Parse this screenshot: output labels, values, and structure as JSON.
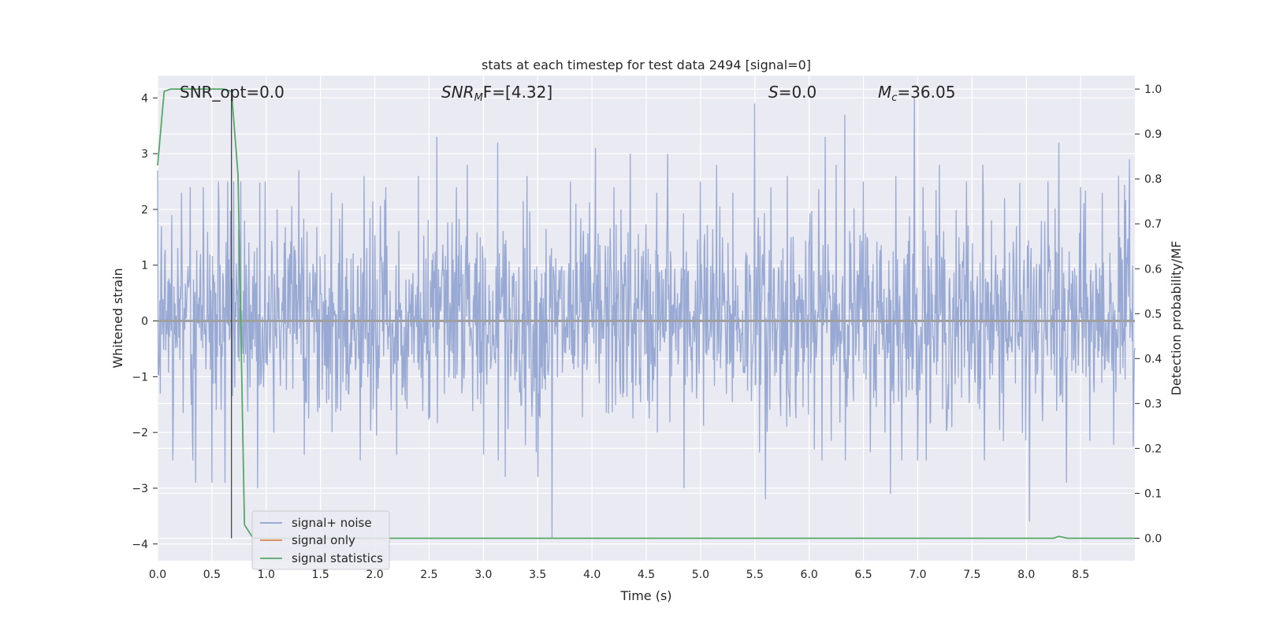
{
  "chart_data": {
    "type": "line",
    "title": "stats at each timestep for test data 2494 [signal=0]",
    "xlabel": "Time (s)",
    "ylabel": "Whitened strain",
    "ylabel_right": "Detection probability/MF",
    "xlim": [
      0.0,
      9.0
    ],
    "ylim": [
      -4.3,
      4.4
    ],
    "ylim_right": [
      -0.05,
      1.03
    ],
    "x_ticks": [
      "0.0",
      "0.5",
      "1.0",
      "1.5",
      "2.0",
      "2.5",
      "3.0",
      "3.5",
      "4.0",
      "4.5",
      "5.0",
      "5.5",
      "6.0",
      "6.5",
      "7.0",
      "7.5",
      "8.0",
      "8.5"
    ],
    "y_ticks": [
      "4",
      "3",
      "2",
      "1",
      "0",
      "−1",
      "−2",
      "−3",
      "−4"
    ],
    "y_ticks_right": [
      "1.0",
      "0.9",
      "0.8",
      "0.7",
      "0.6",
      "0.5",
      "0.4",
      "0.3",
      "0.2",
      "0.1",
      "0.0"
    ],
    "grid": true,
    "legend_position": "lower-left",
    "annotations": {
      "snr_opt": "SNR_opt=0.0",
      "snr_mf_sym": "SNR",
      "snr_mf_sub": "M",
      "snr_mf_rest": "F=[4.32]",
      "s_sym": "S",
      "s_rest": "=0.0",
      "mc_sym": "M",
      "mc_sub": "c",
      "mc_rest": "=36.05"
    },
    "marker_line_x": 0.68,
    "series": [
      {
        "name": "signal+ noise",
        "color": "#8fa2cf",
        "axis": "left",
        "peaks": [
          [
            0.0,
            2.7
          ],
          [
            0.13,
            1.9
          ],
          [
            0.22,
            2.3
          ],
          [
            0.3,
            2.4
          ],
          [
            0.35,
            -2.9
          ],
          [
            0.42,
            2.4
          ],
          [
            0.5,
            -2.9
          ],
          [
            0.56,
            2.5
          ],
          [
            0.62,
            -2.9
          ],
          [
            0.7,
            2.5
          ],
          [
            0.8,
            1.8
          ],
          [
            0.92,
            -3.0
          ],
          [
            1.1,
            2.0
          ],
          [
            1.3,
            2.7
          ],
          [
            1.35,
            -2.4
          ],
          [
            1.6,
            2.3
          ],
          [
            1.9,
            2.6
          ],
          [
            2.1,
            2.4
          ],
          [
            2.2,
            -2.4
          ],
          [
            2.4,
            2.6
          ],
          [
            2.57,
            3.3
          ],
          [
            2.75,
            2.4
          ],
          [
            2.85,
            2.8
          ],
          [
            3.0,
            -2.4
          ],
          [
            3.13,
            3.2
          ],
          [
            3.2,
            -2.8
          ],
          [
            3.4,
            2.6
          ],
          [
            3.5,
            -2.8
          ],
          [
            3.63,
            -3.9
          ],
          [
            3.8,
            2.5
          ],
          [
            4.03,
            3.1
          ],
          [
            4.2,
            2.4
          ],
          [
            4.35,
            3.0
          ],
          [
            4.6,
            2.3
          ],
          [
            4.7,
            3.0
          ],
          [
            4.85,
            -3.0
          ],
          [
            5.0,
            2.5
          ],
          [
            5.15,
            2.8
          ],
          [
            5.3,
            2.3
          ],
          [
            5.5,
            3.9
          ],
          [
            5.6,
            -3.2
          ],
          [
            5.65,
            2.4
          ],
          [
            5.8,
            2.6
          ],
          [
            6.05,
            -2.3
          ],
          [
            6.15,
            3.3
          ],
          [
            6.25,
            2.8
          ],
          [
            6.33,
            3.7
          ],
          [
            6.5,
            2.5
          ],
          [
            6.75,
            -3.1
          ],
          [
            6.8,
            2.6
          ],
          [
            6.97,
            4.0
          ],
          [
            7.05,
            2.4
          ],
          [
            7.2,
            2.8
          ],
          [
            7.45,
            2.5
          ],
          [
            7.6,
            2.8
          ],
          [
            7.8,
            2.2
          ],
          [
            8.03,
            -3.6
          ],
          [
            8.2,
            2.5
          ],
          [
            8.3,
            3.2
          ],
          [
            8.37,
            -2.9
          ],
          [
            8.5,
            2.4
          ],
          [
            8.7,
            2.3
          ],
          [
            8.85,
            2.6
          ],
          [
            8.95,
            2.9
          ]
        ]
      },
      {
        "name": "signal only",
        "color": "#dd8452",
        "axis": "left",
        "x": [
          0.0,
          9.0
        ],
        "y": [
          0.0,
          0.0
        ]
      },
      {
        "name": "signal statistics",
        "color": "#55a868",
        "axis": "right",
        "x": [
          0.0,
          0.06,
          0.12,
          0.2,
          0.3,
          0.5,
          0.6,
          0.68,
          0.74,
          0.8,
          0.88,
          1.0,
          2.0,
          3.0,
          4.0,
          5.0,
          6.0,
          7.0,
          8.0,
          8.25,
          8.3,
          8.38,
          9.0
        ],
        "y": [
          0.83,
          0.995,
          1.0,
          1.0,
          1.0,
          1.0,
          1.0,
          0.995,
          0.81,
          0.03,
          0.0,
          0.0,
          0.0,
          0.0,
          0.0,
          0.0,
          0.0,
          0.0,
          0.0,
          0.0,
          0.004,
          0.0,
          0.0
        ]
      }
    ]
  }
}
